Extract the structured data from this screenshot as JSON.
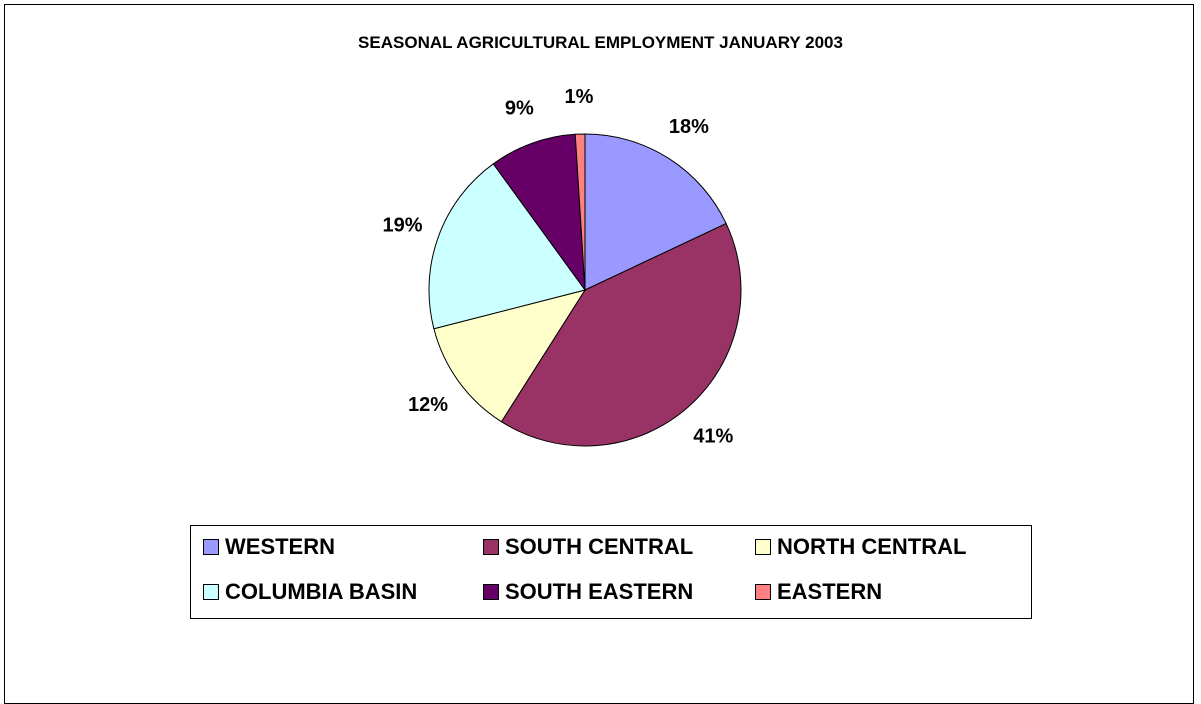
{
  "chart_data": {
    "type": "pie",
    "title": "SEASONAL AGRICULTURAL EMPLOYMENT JANUARY 2003",
    "slices": [
      {
        "name": "WESTERN",
        "value": 18,
        "label": "18%",
        "color": "#9999FF"
      },
      {
        "name": "SOUTH CENTRAL",
        "value": 41,
        "label": "41%",
        "color": "#993366"
      },
      {
        "name": "NORTH CENTRAL",
        "value": 12,
        "label": "12%",
        "color": "#FFFFCC"
      },
      {
        "name": "COLUMBIA BASIN",
        "value": 19,
        "label": "19%",
        "color": "#CCFFFF"
      },
      {
        "name": "SOUTH EASTERN",
        "value": 9,
        "label": "9%",
        "color": "#660066"
      },
      {
        "name": "EASTERN",
        "value": 1,
        "label": "1%",
        "color": "#FF8080"
      }
    ],
    "legend_placement": "bottom"
  }
}
